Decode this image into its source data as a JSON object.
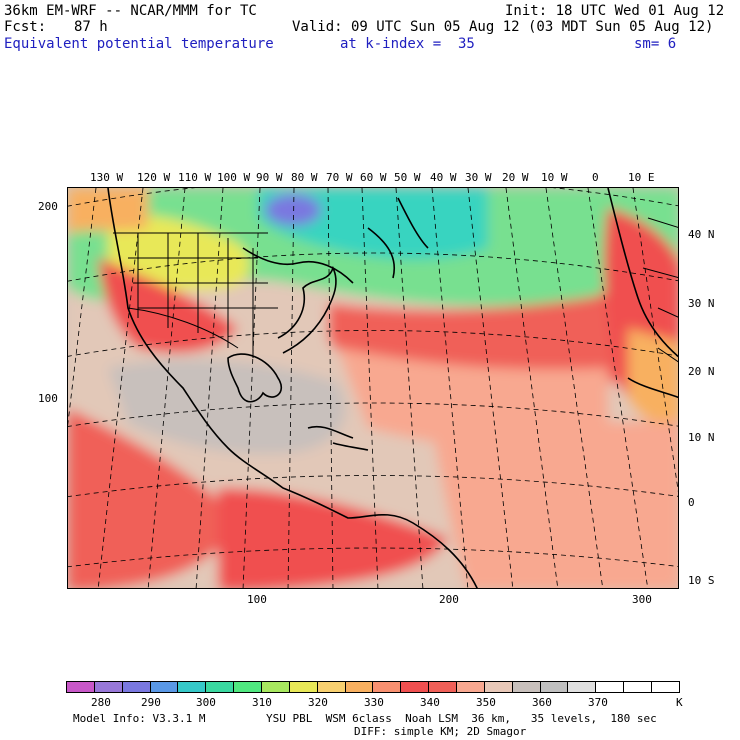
{
  "header": {
    "model_title": "36km EM-WRF -- NCAR/MMM for TC",
    "init": "Init: 18 UTC Wed 01 Aug 12",
    "fcst_label": "Fcst:",
    "fcst_hours": "87 h",
    "valid": "Valid: 09 UTC Sun 05 Aug 12 (03 MDT Sun 05 Aug 12)",
    "field_name": "Equivalent potential temperature",
    "level": "at k-index =  35",
    "smoothing": "sm= 6"
  },
  "map": {
    "lon_labels": [
      "130 W",
      "120 W",
      "110 W",
      "100 W",
      "90 W",
      "80 W",
      "70 W",
      "60 W",
      "50 W",
      "40 W",
      "30 W",
      "20 W",
      "10 W",
      "0",
      "10 E"
    ],
    "lat_labels": [
      "40 N",
      "30 N",
      "20 N",
      "10 N",
      "0",
      "10 S"
    ],
    "y_grid_labels": [
      "200",
      "100"
    ],
    "x_grid_labels": [
      "100",
      "200",
      "300"
    ]
  },
  "colorbar": {
    "colors": [
      "#c858c8",
      "#9878d8",
      "#7a78e0",
      "#5a98e6",
      "#36c8c8",
      "#3ad8a0",
      "#50e880",
      "#a8e860",
      "#e8e858",
      "#f8d070",
      "#f8b060",
      "#f89070",
      "#f05050",
      "#f06058",
      "#f8a890",
      "#e8c8b8",
      "#c8c0bc",
      "#c0c0c0",
      "#e0e0e0",
      "#ffffff",
      "#ffffff",
      "#ffffff"
    ],
    "labels": [
      "280",
      "290",
      "300",
      "310",
      "320",
      "330",
      "340",
      "350",
      "360",
      "370"
    ],
    "unit": "K"
  },
  "footer": {
    "model_info": "Model Info: V3.3.1 M",
    "physics": "YSU PBL  WSM 6class  Noah LSM  36 km,   35 levels,  180 sec",
    "diffusion": "DIFF: simple KM; 2D Smagor"
  }
}
